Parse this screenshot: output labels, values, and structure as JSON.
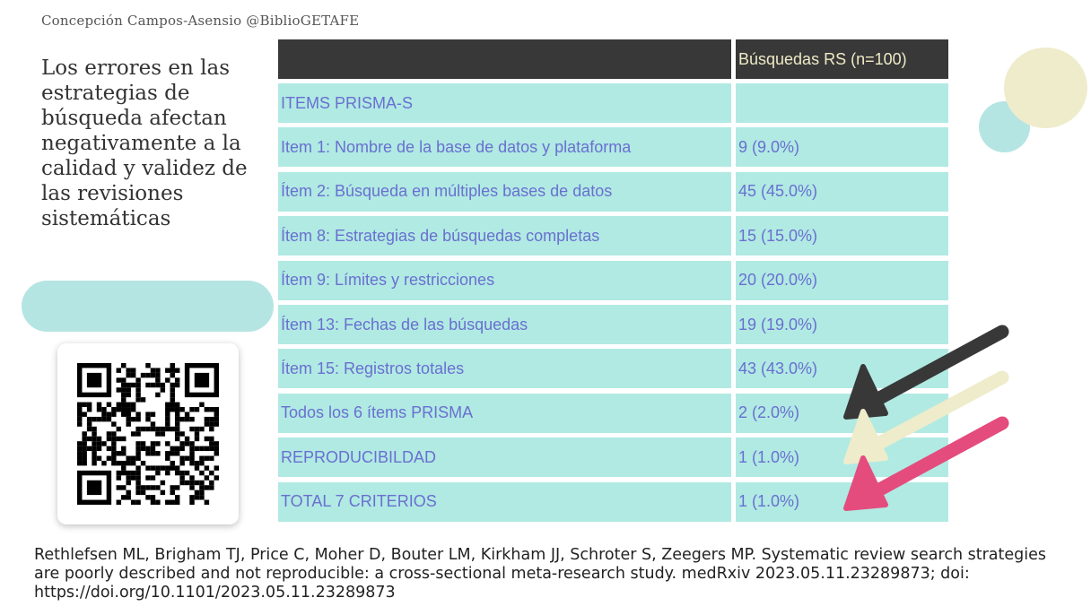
{
  "author": "Concepción Campos-Asensio @BiblioGETAFE",
  "headline": "Los errores en las estrategias de búsqueda afectan negativamente a la calidad y validez de las revisiones sistemáticas",
  "table": {
    "header": [
      "",
      "Búsquedas RS (n=100)"
    ],
    "rows": [
      [
        "ITEMS PRISMA-S",
        ""
      ],
      [
        "Item 1: Nombre de la base de datos y plataforma",
        "9 (9.0%)"
      ],
      [
        "Ítem 2: Búsqueda en múltiples bases de datos",
        "45 (45.0%)"
      ],
      [
        "Ítem 8: Estrategias de búsquedas completas",
        "15 (15.0%)"
      ],
      [
        "Ítem 9: Límites y restricciones",
        "20 (20.0%)"
      ],
      [
        "Ítem 13: Fechas de las búsquedas",
        "19 (19.0%)"
      ],
      [
        "Ítem 15: Registros totales",
        "43 (43.0%)"
      ],
      [
        "Todos los 6 ítems PRISMA",
        "2 (2.0%)"
      ],
      [
        "REPRODUCIBILDAD",
        "1 (1.0%)"
      ],
      [
        "TOTAL 7 CRITERIOS",
        "1 (1.0%)"
      ]
    ]
  },
  "colors": {
    "header_bg": "#383838",
    "header_text": "#eeeac6",
    "cell_bg": "#b0eae3",
    "cell_text": "#6a6fd0",
    "arrow_black": "#383838",
    "arrow_cream": "#eeeccb",
    "arrow_pink": "#e44c7e",
    "circle_cream": "#eeeccb",
    "circle_teal": "#b5e5e2"
  },
  "citation": "Rethlefsen ML, Brigham TJ, Price C, Moher D, Bouter LM, Kirkham JJ, Schroter S, Zeegers MP. Systematic review search strategies are poorly described and not reproducible: a cross-sectional meta-research study. medRxiv 2023.05.11.23289873; doi: https://doi.org/10.1101/2023.05.11.23289873"
}
